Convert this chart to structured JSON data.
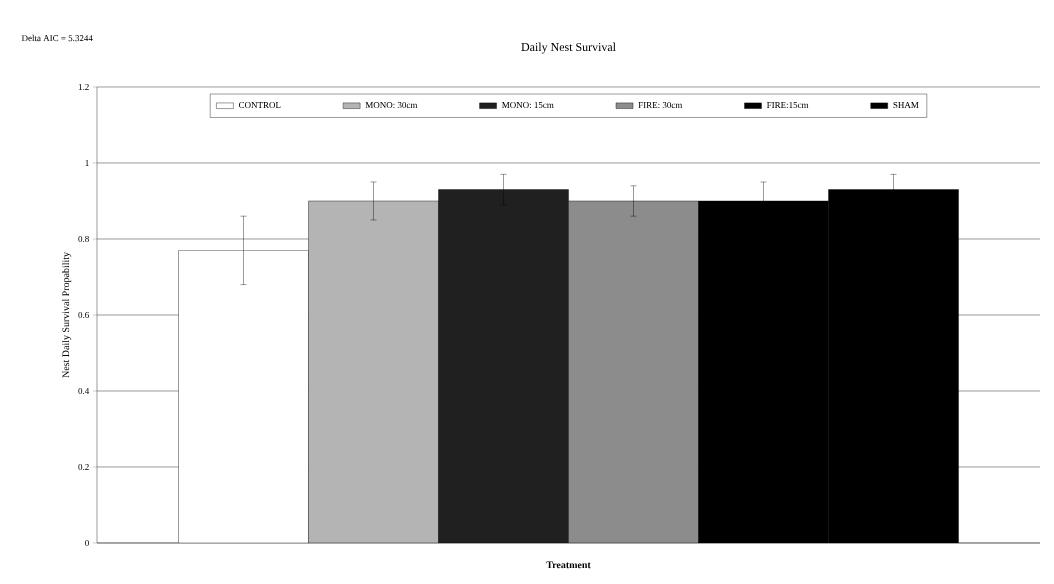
{
  "chart_data": {
    "type": "bar",
    "title": "Daily Nest Survival",
    "xlabel": "Treatment",
    "ylabel": "Nest Daily Survival Propability",
    "annotations": [
      "Delta AIC = 5.3244"
    ],
    "categories": [
      null
    ],
    "series": [
      {
        "name": "CONTROL",
        "color": "#ffffff",
        "values": [
          0.77
        ],
        "errors": [
          0.09
        ]
      },
      {
        "name": "MONO: 30cm",
        "color": "#b4b4b4",
        "values": [
          0.9
        ],
        "errors": [
          0.05
        ]
      },
      {
        "name": "MONO: 15cm",
        "color": "#202020",
        "values": [
          0.93
        ],
        "errors": [
          0.04
        ]
      },
      {
        "name": "FIRE: 30cm",
        "color": "#8c8c8c",
        "values": [
          0.9
        ],
        "errors": [
          0.04
        ]
      },
      {
        "name": "FIRE:15cm",
        "color": "#000000",
        "values": [
          0.9
        ],
        "errors": [
          0.05
        ]
      },
      {
        "name": "SHAM",
        "color": "#000000",
        "values": [
          0.93
        ],
        "errors": [
          0.04
        ]
      }
    ],
    "ylim": [
      0,
      1.2
    ],
    "yticks": [
      0,
      0.2,
      0.4,
      0.6,
      0.8,
      1,
      1.2
    ],
    "grid": "y",
    "legend": "top"
  }
}
